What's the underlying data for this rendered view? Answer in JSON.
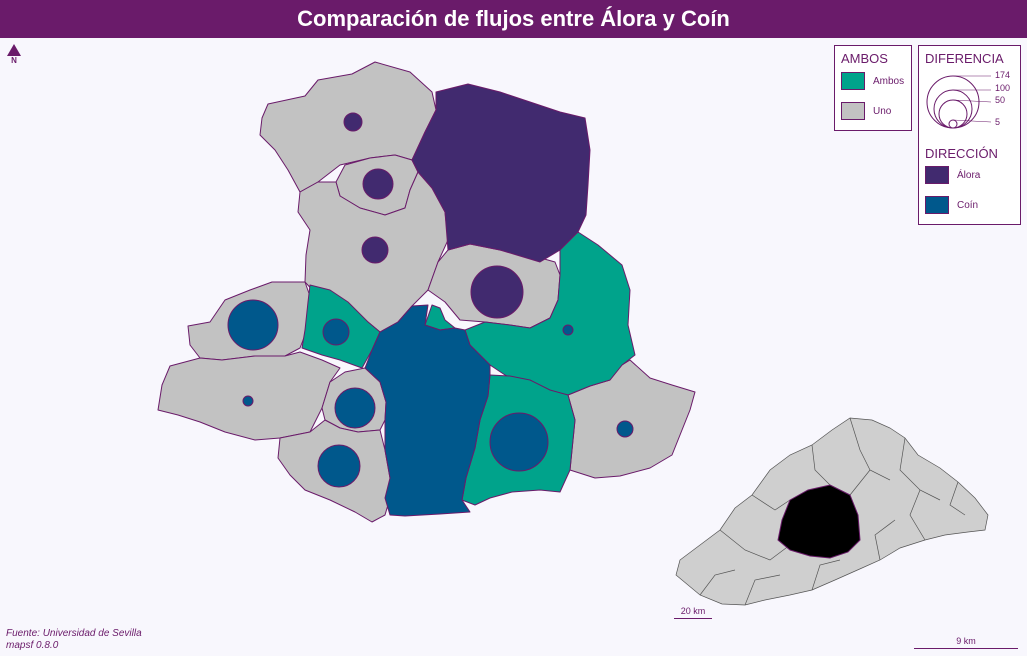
{
  "title": "Comparación de flujos entre Álora y Coín",
  "north_label": "N",
  "colors": {
    "title_bar": "#6a1b6a",
    "both": "#00a38b",
    "one": "#c2c2c2",
    "alora": "#412a6f",
    "coin": "#00588c",
    "border": "#6a1b6a"
  },
  "legend_ambos": {
    "title": "AMBOS",
    "items": [
      {
        "label": "Ambos",
        "color": "#00a38b"
      },
      {
        "label": "Uno",
        "color": "#c2c2c2"
      }
    ]
  },
  "legend_diferencia": {
    "title": "DIFERENCIA",
    "values": [
      "174",
      "100",
      "50",
      "5"
    ]
  },
  "legend_direccion": {
    "title": "DIRECCIÓN",
    "items": [
      {
        "label": "Álora",
        "color": "#412a6f"
      },
      {
        "label": "Coín",
        "color": "#00588c"
      }
    ]
  },
  "source_lines": [
    "Fuente: Universidad de Sevilla",
    "mapsf 0.8.0"
  ],
  "scale_main": "9 km",
  "scale_inset": "20 km"
}
